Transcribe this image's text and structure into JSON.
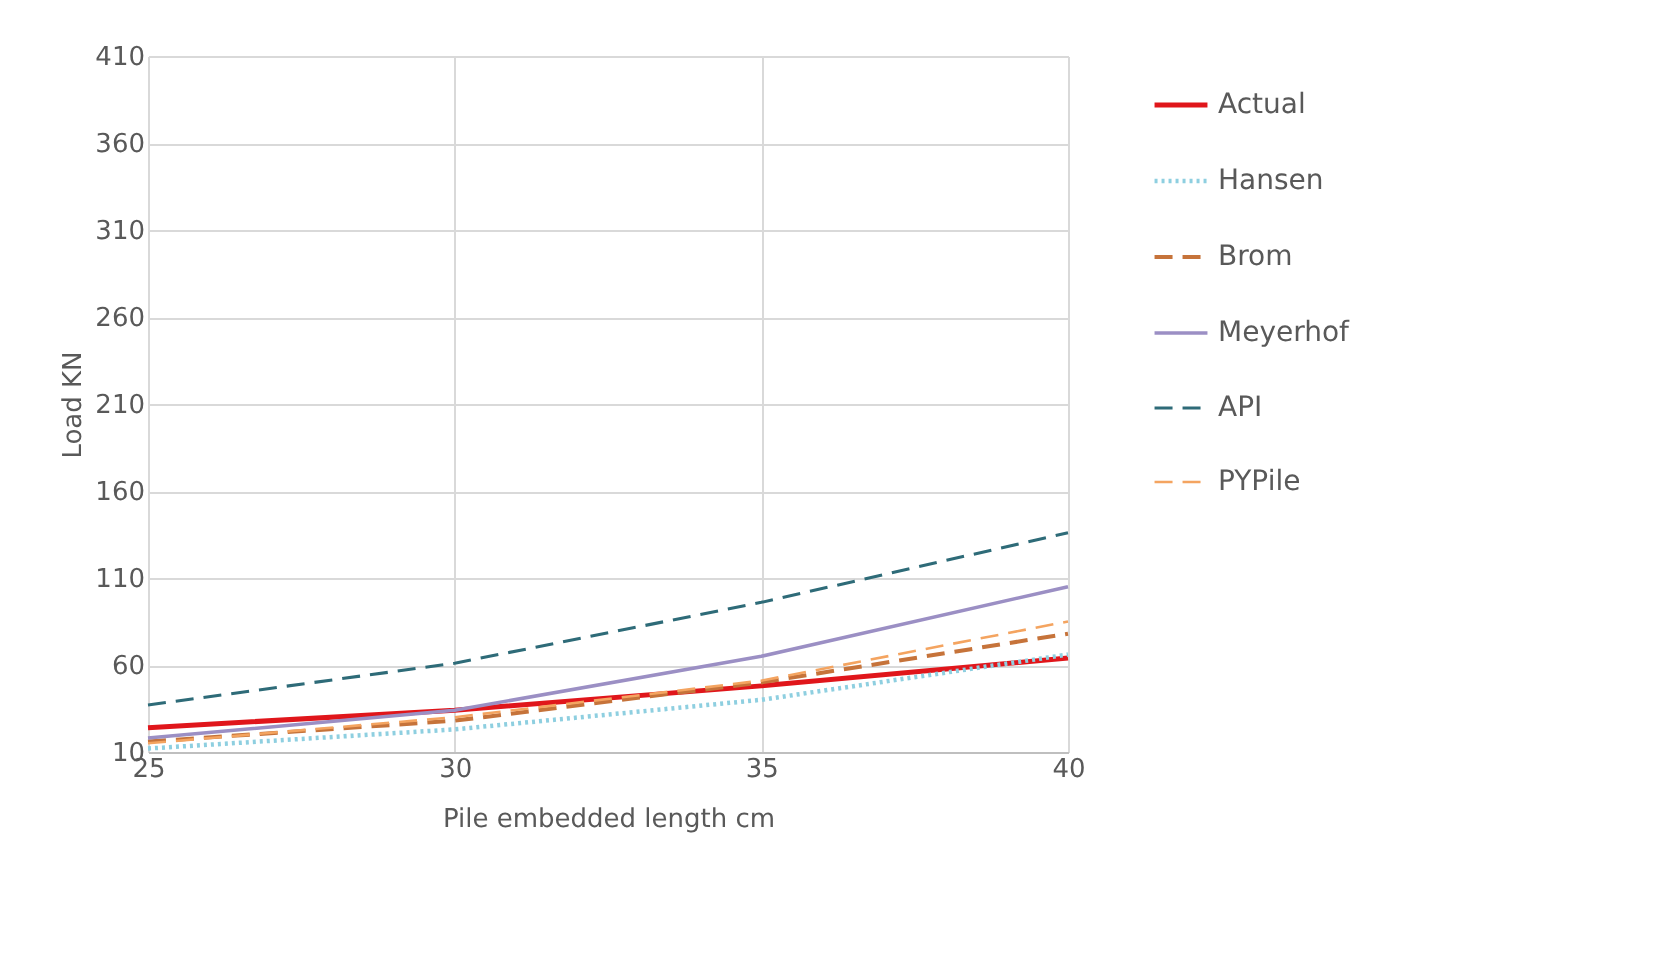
{
  "chart_data": {
    "type": "line",
    "xlabel": "Pile embedded  length cm",
    "ylabel": "Load KN",
    "x": [
      25,
      30,
      35,
      40
    ],
    "series": [
      {
        "name": "Actual",
        "color": "#e0161b",
        "line_style": "solid",
        "values": [
          24,
          34,
          48,
          64
        ]
      },
      {
        "name": "Hansen",
        "color": "#8ecfe0",
        "line_style": "dotted",
        "values": [
          12,
          23,
          40,
          66
        ]
      },
      {
        "name": "Brom",
        "color": "#c6733a",
        "line_style": "dashed",
        "values": [
          16,
          28,
          50,
          78
        ]
      },
      {
        "name": "Meyerhof",
        "color": "#9b8fc4",
        "line_style": "solid",
        "values": [
          18,
          34,
          65,
          105
        ]
      },
      {
        "name": "API",
        "color": "#2e6b78",
        "line_style": "dashed",
        "values": [
          37,
          61,
          96,
          136
        ]
      },
      {
        "name": "PYPile",
        "color": "#f4a460",
        "line_style": "dashed",
        "values": [
          15,
          30,
          51,
          85
        ]
      }
    ],
    "xlim": [
      25,
      40
    ],
    "xticks": [
      25,
      30,
      35,
      40
    ],
    "ylim": [
      10,
      410
    ],
    "yticks": [
      10,
      60,
      110,
      160,
      210,
      260,
      310,
      360,
      410
    ],
    "grid": true,
    "legend": "right",
    "marker": "none"
  }
}
